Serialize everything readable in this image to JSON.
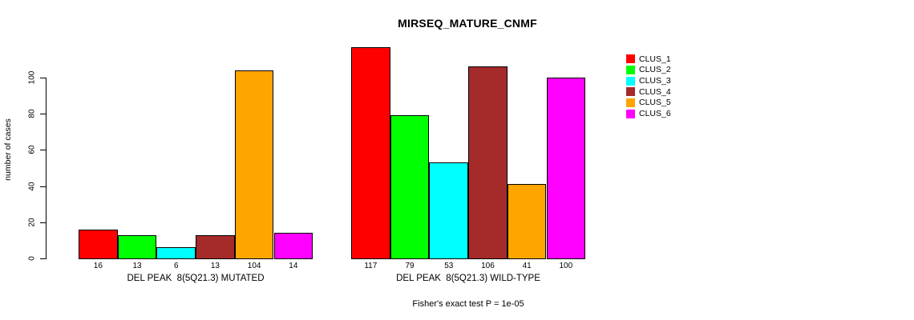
{
  "chart_data": {
    "type": "bar",
    "title": "MIRSEQ_MATURE_CNMF",
    "ylabel": "number of cases",
    "xlabel": "",
    "ylim": [
      0,
      100
    ],
    "yticks": [
      0,
      20,
      40,
      60,
      80,
      100
    ],
    "grid": false,
    "legend_position": "top-right",
    "categories": [
      "DEL PEAK  8(5Q21.3) MUTATED",
      "DEL PEAK  8(5Q21.3) WILD-TYPE"
    ],
    "series": [
      {
        "name": "CLUS_1",
        "color": "#FF0000",
        "values": [
          16,
          117
        ]
      },
      {
        "name": "CLUS_2",
        "color": "#00FF00",
        "values": [
          13,
          79
        ]
      },
      {
        "name": "CLUS_3",
        "color": "#00FFFF",
        "values": [
          6,
          53
        ]
      },
      {
        "name": "CLUS_4",
        "color": "#A52A2A",
        "values": [
          13,
          106
        ]
      },
      {
        "name": "CLUS_5",
        "color": "#FFA500",
        "values": [
          104,
          41
        ]
      },
      {
        "name": "CLUS_6",
        "color": "#FF00FF",
        "values": [
          14,
          100
        ]
      }
    ],
    "bar_value_labels_shown": true,
    "footnote": "Fisher's exact test P = 1e-05"
  }
}
